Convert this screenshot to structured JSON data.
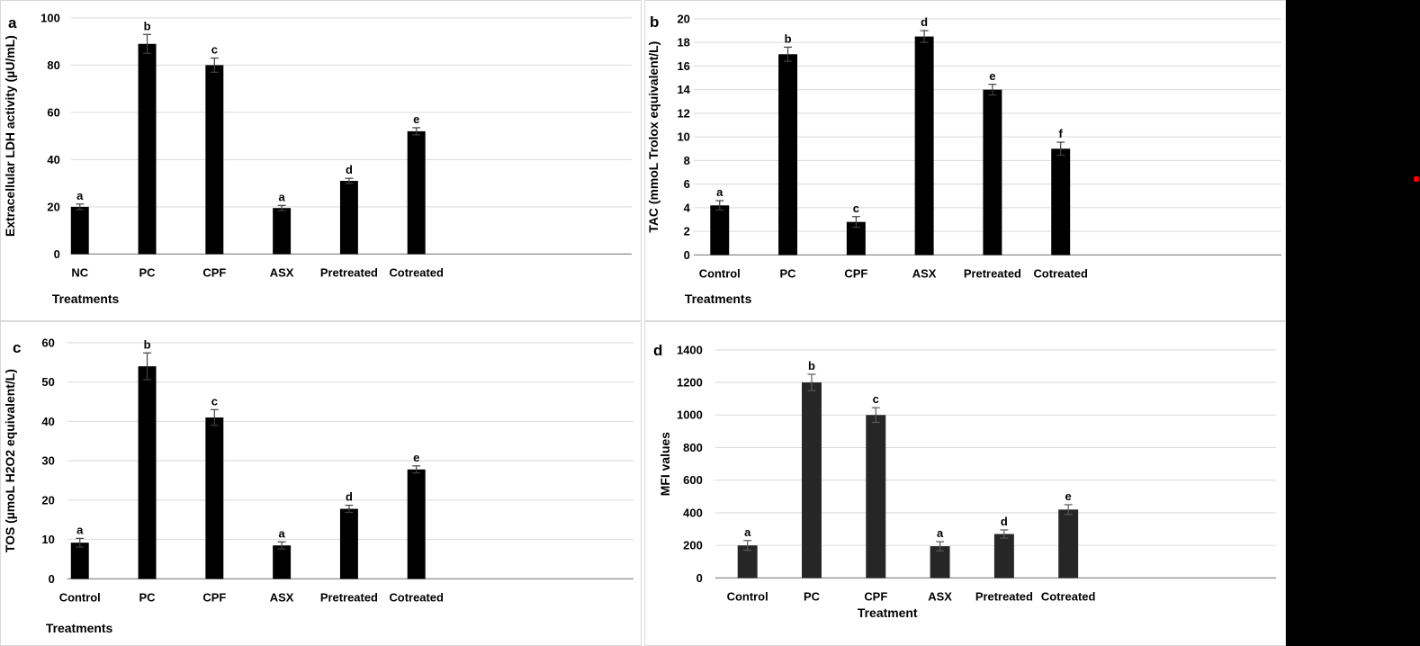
{
  "figure": {
    "background": "#ffffff",
    "right_strip_color": "#000000",
    "red_marker_color": "#fb0007",
    "gridline_color": "#d9d9d9",
    "axis_line_color": "#8c8c8c",
    "text_color": "#000000"
  },
  "chart_data": [
    {
      "id": "a",
      "panel_label": "a",
      "type": "bar",
      "title": "",
      "ylabel": "Extracellular LDH activity (µU/mL)",
      "xlabel": "Treatments",
      "categories": [
        "NC",
        "PC",
        "CPF",
        "ASX",
        "Pretreated",
        "Cotreated"
      ],
      "values": [
        20,
        89,
        80,
        19.5,
        31,
        52
      ],
      "errors": [
        1.2,
        4,
        3,
        1.1,
        1.1,
        1.5
      ],
      "letters": [
        "a",
        "b",
        "c",
        "a",
        "d",
        "e"
      ],
      "ylim": [
        0,
        100
      ],
      "ytick_step": 20,
      "grid": true,
      "legend": "none",
      "bar_color": "#000000",
      "error_color": "#404040"
    },
    {
      "id": "b",
      "panel_label": "b",
      "type": "bar",
      "title": "",
      "ylabel": "TAC (mmoL Trolox equivalent/L)",
      "xlabel": "Treatments",
      "categories": [
        "Control",
        "PC",
        "CPF",
        "ASX",
        "Pretreated",
        "Cotreated"
      ],
      "values": [
        4.2,
        17,
        2.8,
        18.5,
        14,
        9
      ],
      "errors": [
        0.4,
        0.6,
        0.45,
        0.5,
        0.45,
        0.55
      ],
      "letters": [
        "a",
        "b",
        "c",
        "d",
        "e",
        "f"
      ],
      "ylim": [
        0,
        20
      ],
      "ytick_step": 2,
      "grid": true,
      "legend": "none",
      "bar_color": "#000000",
      "error_color": "#404040"
    },
    {
      "id": "c",
      "panel_label": "c",
      "type": "bar",
      "title": "",
      "ylabel": "TOS (µmoL H2O2 equivalent/L)",
      "xlabel": "Treatments",
      "categories": [
        "Control",
        "PC",
        "CPF",
        "ASX",
        "Pretreated",
        "Cotreated"
      ],
      "values": [
        9.2,
        54,
        41,
        8.5,
        17.8,
        27.8
      ],
      "errors": [
        1.1,
        3.4,
        2,
        0.9,
        0.9,
        0.9
      ],
      "letters": [
        "a",
        "b",
        "c",
        "a",
        "d",
        "e"
      ],
      "ylim": [
        0,
        60
      ],
      "ytick_step": 10,
      "grid": true,
      "legend": "none",
      "bar_color": "#000000",
      "error_color": "#404040"
    },
    {
      "id": "d",
      "panel_label": "d",
      "type": "bar",
      "title": "",
      "ylabel": "MFI values",
      "xlabel": "Treatment",
      "categories": [
        "Control",
        "PC",
        "CPF",
        "ASX",
        "Pretreated",
        "Cotreated"
      ],
      "values": [
        200,
        1200,
        1000,
        195,
        270,
        420
      ],
      "errors": [
        30,
        50,
        45,
        28,
        25,
        30
      ],
      "letters": [
        "a",
        "b",
        "c",
        "a",
        "d",
        "e"
      ],
      "ylim": [
        0,
        1400
      ],
      "ytick_step": 200,
      "grid": true,
      "legend": "none",
      "bar_color": "#262626",
      "error_color": "#595959"
    }
  ]
}
